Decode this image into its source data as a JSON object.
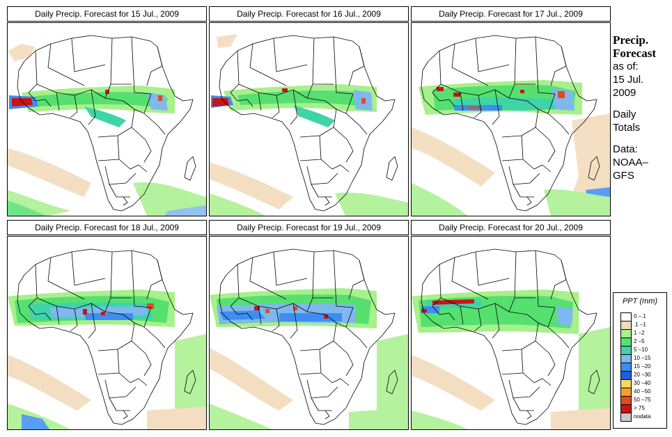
{
  "panels": [
    {
      "title": "Daily Precip. Forecast for  15 Jul., 2009"
    },
    {
      "title": "Daily Precip. Forecast for  16 Jul., 2009"
    },
    {
      "title": "Daily Precip. Forecast for  17 Jul., 2009"
    },
    {
      "title": "Daily Precip. Forecast for  18 Jul., 2009"
    },
    {
      "title": "Daily Precip. Forecast for  19 Jul., 2009"
    },
    {
      "title": "Daily Precip. Forecast for  20 Jul., 2009"
    }
  ],
  "side": {
    "heading1": "Precip.",
    "heading2": "Forecast",
    "asof1": "as of:",
    "asof2": "15 Jul.",
    "asof3": "2009",
    "totals1": "Daily",
    "totals2": "Totals",
    "data1": "Data:",
    "data2": "NOAA–",
    "data3": "GFS"
  },
  "legend": {
    "title": "PPT (mm)",
    "items": [
      {
        "label": "0 –.1",
        "color": "#ffffff"
      },
      {
        "label": ".1 –1",
        "color": "#f3d9b8"
      },
      {
        "label": "1 –2",
        "color": "#a7f08c"
      },
      {
        "label": "2 –5",
        "color": "#55e070"
      },
      {
        "label": "5 –10",
        "color": "#3fd3a8"
      },
      {
        "label": "10 –15",
        "color": "#7fb8ee"
      },
      {
        "label": "15 –20",
        "color": "#3d8ef0"
      },
      {
        "label": "20 –30",
        "color": "#1e5fe0"
      },
      {
        "label": "30 –40",
        "color": "#f5d860"
      },
      {
        "label": "40 –50",
        "color": "#f3a030"
      },
      {
        "label": "50 –75",
        "color": "#e34a1e"
      },
      {
        "label": "> 75",
        "color": "#c81414"
      },
      {
        "label": "nodata",
        "color": "#c8c8c8"
      }
    ]
  }
}
